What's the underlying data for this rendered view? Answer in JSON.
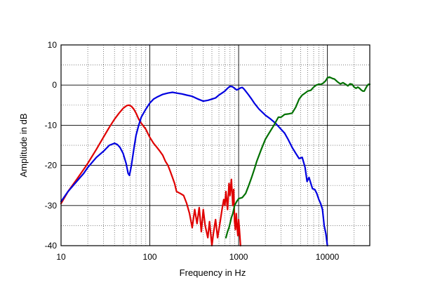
{
  "chart_data": {
    "type": "line",
    "title": "",
    "xlabel": "Frequency in Hz",
    "ylabel": "Amplitude in dB",
    "x_scale": "log",
    "xlim": [
      10,
      30000
    ],
    "ylim": [
      -40,
      10
    ],
    "x_ticks": [
      10,
      100,
      1000,
      10000
    ],
    "x_tick_labels": [
      "10",
      "100",
      "1000",
      "10000"
    ],
    "y_ticks": [
      10,
      0,
      -10,
      -20,
      -30,
      -40
    ],
    "y_tick_labels": [
      "10",
      "0",
      "-10",
      "-20",
      "-30",
      "-40"
    ],
    "grid": true,
    "legend": "none",
    "series": [
      {
        "color": "#e00000",
        "x": [
          10,
          12,
          15,
          18,
          20,
          25,
          30,
          35,
          40,
          45,
          50,
          55,
          58,
          62,
          66,
          70,
          75,
          80,
          90,
          100,
          110,
          120,
          130,
          140,
          150,
          160,
          170,
          180,
          190,
          200,
          220,
          240,
          260,
          280,
          300,
          320,
          340,
          360,
          380,
          400,
          420,
          450,
          470,
          500,
          520,
          550,
          580,
          600,
          620,
          650,
          680,
          700,
          720,
          750,
          780,
          800,
          830,
          860,
          880,
          900,
          920,
          940,
          960,
          980,
          1000,
          1020,
          1050
        ],
        "values": [
          -29.5,
          -26.5,
          -23.5,
          -21,
          -19.5,
          -16,
          -13,
          -10.5,
          -8.5,
          -7,
          -5.8,
          -5.1,
          -5,
          -5.3,
          -6,
          -7,
          -8.5,
          -9.5,
          -11,
          -13,
          -14.5,
          -15.5,
          -16.5,
          -17.5,
          -19,
          -20,
          -21.5,
          -23,
          -24.5,
          -26.5,
          -27,
          -27.5,
          -29.5,
          -32,
          -35.5,
          -31,
          -34.5,
          -30.5,
          -36.5,
          -31,
          -35,
          -38,
          -34,
          -40,
          -37,
          -33.5,
          -38,
          -36,
          -34,
          -31,
          -28.5,
          -30,
          -26.5,
          -31,
          -24.5,
          -27.5,
          -23.5,
          -30,
          -26,
          -34,
          -36,
          -32,
          -35,
          -37.5,
          -33.5,
          -36,
          -40
        ]
      },
      {
        "color": "#0000e0",
        "x": [
          10,
          12,
          15,
          18,
          20,
          25,
          30,
          35,
          40,
          43,
          46,
          50,
          54,
          57,
          59,
          62,
          66,
          70,
          75,
          80,
          90,
          100,
          110,
          120,
          140,
          160,
          180,
          200,
          230,
          260,
          300,
          350,
          400,
          450,
          500,
          550,
          600,
          650,
          700,
          750,
          800,
          850,
          900,
          950,
          1000,
          1050,
          1100,
          1150,
          1200,
          1300,
          1400,
          1500,
          1700,
          2000,
          2300,
          2600,
          3000,
          3300,
          3600,
          4000,
          4400,
          4800,
          5200,
          5600,
          5900,
          6200,
          6500,
          6800,
          7200,
          7600,
          8000,
          8400,
          8800,
          9200,
          9600,
          10000
        ],
        "values": [
          -29,
          -26.5,
          -24,
          -22,
          -20.5,
          -18,
          -16.5,
          -15,
          -14.5,
          -14.8,
          -15.5,
          -17,
          -19.5,
          -22,
          -22.5,
          -20,
          -16,
          -12.5,
          -10,
          -8,
          -6,
          -4.5,
          -3.5,
          -3,
          -2.3,
          -2,
          -1.8,
          -2,
          -2.2,
          -2.5,
          -2.8,
          -3.5,
          -4,
          -3.8,
          -3.5,
          -3.2,
          -2.5,
          -2,
          -1.5,
          -0.8,
          -0.3,
          -0.4,
          -0.8,
          -1.2,
          -1,
          -0.7,
          -0.6,
          -1,
          -1.5,
          -2.5,
          -3.5,
          -4.5,
          -6,
          -7.5,
          -8.5,
          -9.5,
          -11,
          -12,
          -13.5,
          -15.5,
          -17,
          -18.3,
          -18,
          -20.5,
          -24,
          -23,
          -24.5,
          -25.8,
          -26,
          -27,
          -28.5,
          -29.5,
          -31,
          -35,
          -37,
          -40
        ]
      },
      {
        "color": "#007000",
        "x": [
          720,
          750,
          780,
          800,
          830,
          860,
          900,
          950,
          1000,
          1100,
          1200,
          1300,
          1400,
          1500,
          1600,
          1800,
          2000,
          2200,
          2500,
          2800,
          3000,
          3300,
          3600,
          4000,
          4400,
          4800,
          5200,
          5600,
          6000,
          6500,
          7000,
          7500,
          8000,
          8500,
          9000,
          9500,
          10000,
          10500,
          11000,
          11500,
          12000,
          13000,
          14000,
          15000,
          16000,
          17000,
          18000,
          19000,
          20000,
          21000,
          22000,
          23000,
          24000,
          25000,
          26000,
          27000,
          28000,
          29000,
          30000
        ],
        "values": [
          -38,
          -36.5,
          -35.5,
          -34.5,
          -33,
          -32,
          -30,
          -29,
          -28.3,
          -28,
          -27,
          -25,
          -23,
          -21,
          -19,
          -16,
          -13.5,
          -12,
          -10,
          -8,
          -8,
          -7.3,
          -7.2,
          -7,
          -5.5,
          -3.5,
          -2.5,
          -2,
          -1.5,
          -1.3,
          -0.5,
          0,
          0.2,
          0.2,
          0.5,
          1,
          1.8,
          2,
          1.8,
          1.6,
          1.5,
          0.8,
          0.3,
          0.6,
          0.2,
          -0.2,
          0.3,
          0.2,
          -0.5,
          -0.8,
          -0.5,
          -0.8,
          -1.2,
          -1.5,
          -1.5,
          -0.8,
          -0.2,
          0.2,
          0.2
        ]
      }
    ]
  }
}
